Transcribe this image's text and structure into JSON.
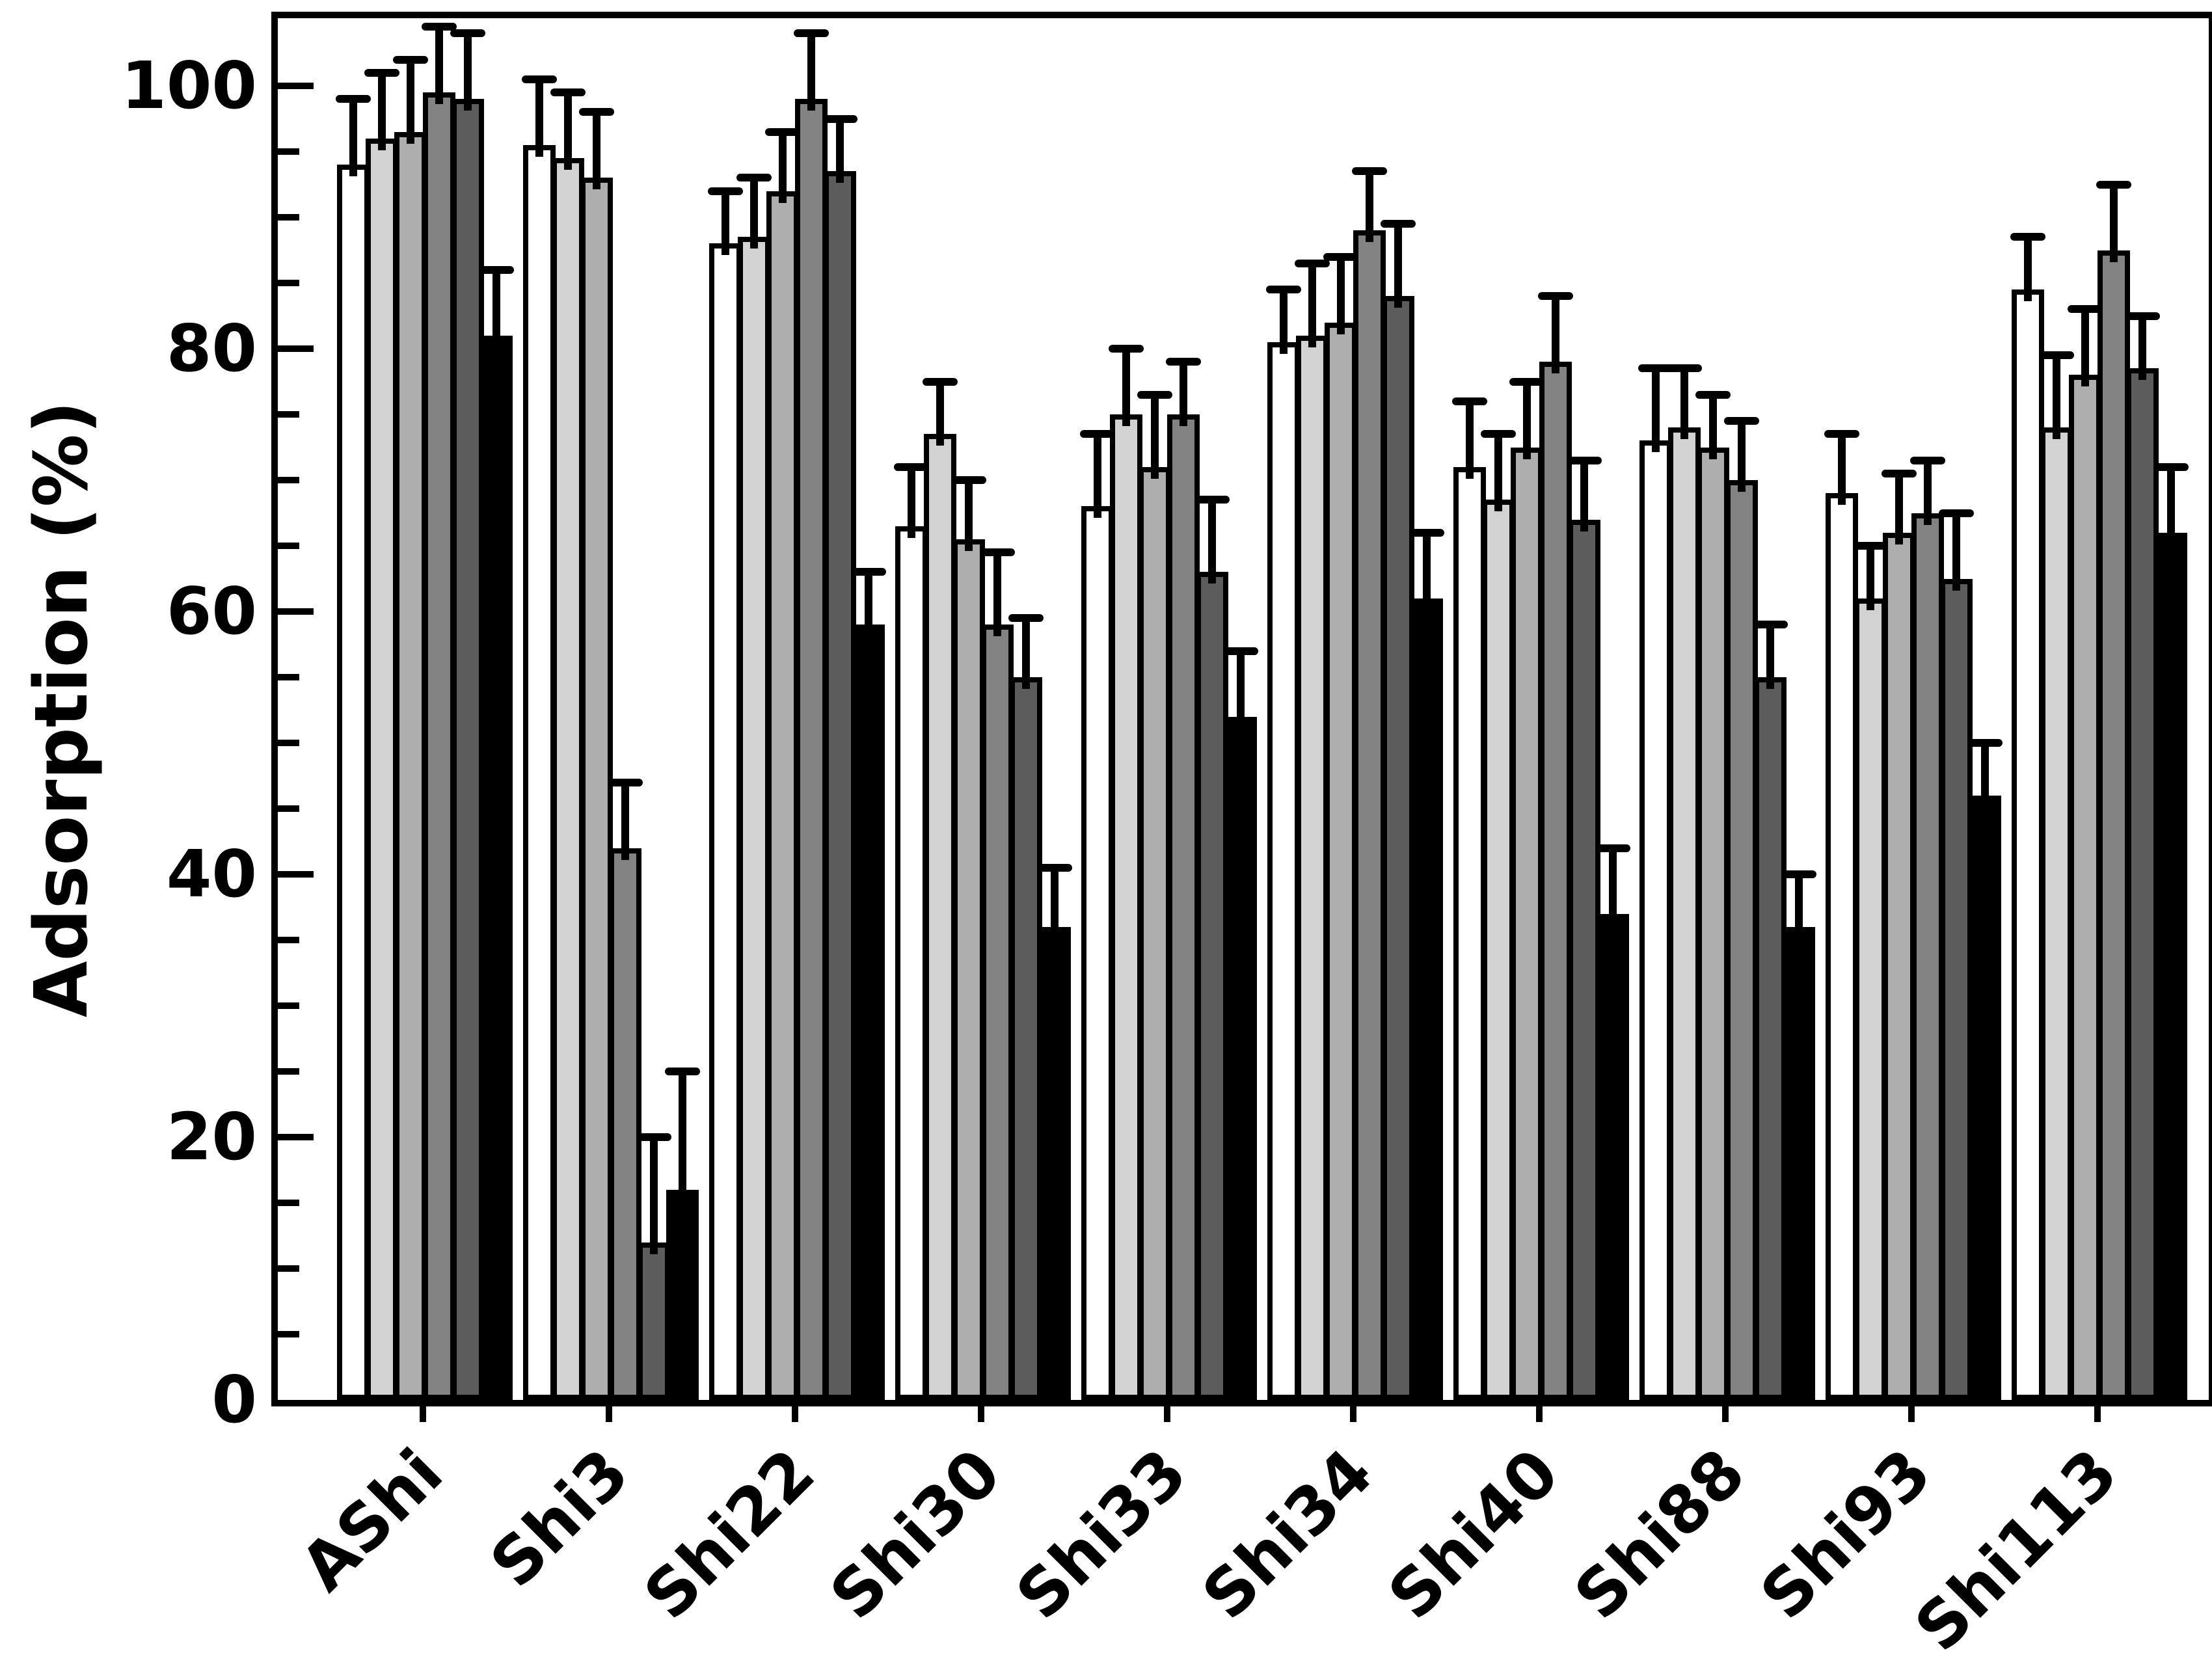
{
  "chart_data": {
    "type": "bar",
    "title": "",
    "xlabel": "",
    "ylabel": "Adsorption (%)",
    "ylim": [
      0,
      105
    ],
    "grid": false,
    "legend_position": "none",
    "error_bars": "upper-only",
    "yticks_major": [
      0,
      20,
      40,
      60,
      80,
      100
    ],
    "ytick_labels": [
      "0",
      "20",
      "40",
      "60",
      "80",
      "100"
    ],
    "ytick_minor_step": 5,
    "categories": [
      "AShi",
      "Shi3",
      "Shi22",
      "Shi30",
      "Shi33",
      "Shi34",
      "Shi40",
      "Shi88",
      "Shi93",
      "Shi113"
    ],
    "series": [
      {
        "name": "bar-1-white",
        "color": "#ffffff",
        "values": [
          94,
          95.5,
          88,
          66.5,
          68,
          80.5,
          71,
          73,
          69,
          84.5
        ],
        "errors": [
          5,
          5,
          4,
          4.5,
          5.5,
          4,
          5,
          5.5,
          4.5,
          4
        ]
      },
      {
        "name": "bar-2-light-gray",
        "color": "#d2d2d2",
        "values": [
          96,
          94.5,
          88.5,
          73.5,
          75,
          81,
          68.5,
          74,
          61,
          74
        ],
        "errors": [
          5,
          5,
          4.5,
          4,
          5,
          5.5,
          5,
          4.5,
          4,
          5.5
        ]
      },
      {
        "name": "bar-3-medium-gray",
        "color": "#aeaeae",
        "values": [
          96.5,
          93,
          92,
          65.5,
          71,
          82,
          72.5,
          72.5,
          66,
          78
        ],
        "errors": [
          5.5,
          5,
          4.5,
          4.5,
          5.5,
          5,
          5,
          4,
          4.5,
          5
        ]
      },
      {
        "name": "bar-4-gray",
        "color": "#828282",
        "values": [
          99.5,
          42,
          99,
          59,
          75,
          89,
          79,
          70,
          67.5,
          87.5
        ],
        "errors": [
          5,
          5,
          5,
          5.5,
          4,
          4.5,
          5,
          4.5,
          4,
          5
        ]
      },
      {
        "name": "bar-5-dark-gray",
        "color": "#5c5c5c",
        "values": [
          99,
          12,
          93.5,
          55,
          63,
          84,
          67,
          55,
          62.5,
          78.5
        ],
        "errors": [
          5,
          8,
          4,
          4.5,
          5.5,
          5.5,
          4.5,
          4,
          5,
          4
        ]
      },
      {
        "name": "bar-6-black",
        "color": "#000000",
        "values": [
          81,
          16,
          59,
          36,
          52,
          61,
          37,
          36,
          46,
          66
        ],
        "errors": [
          5,
          9,
          4,
          4.5,
          5,
          5,
          5,
          4,
          4,
          5
        ]
      }
    ]
  }
}
